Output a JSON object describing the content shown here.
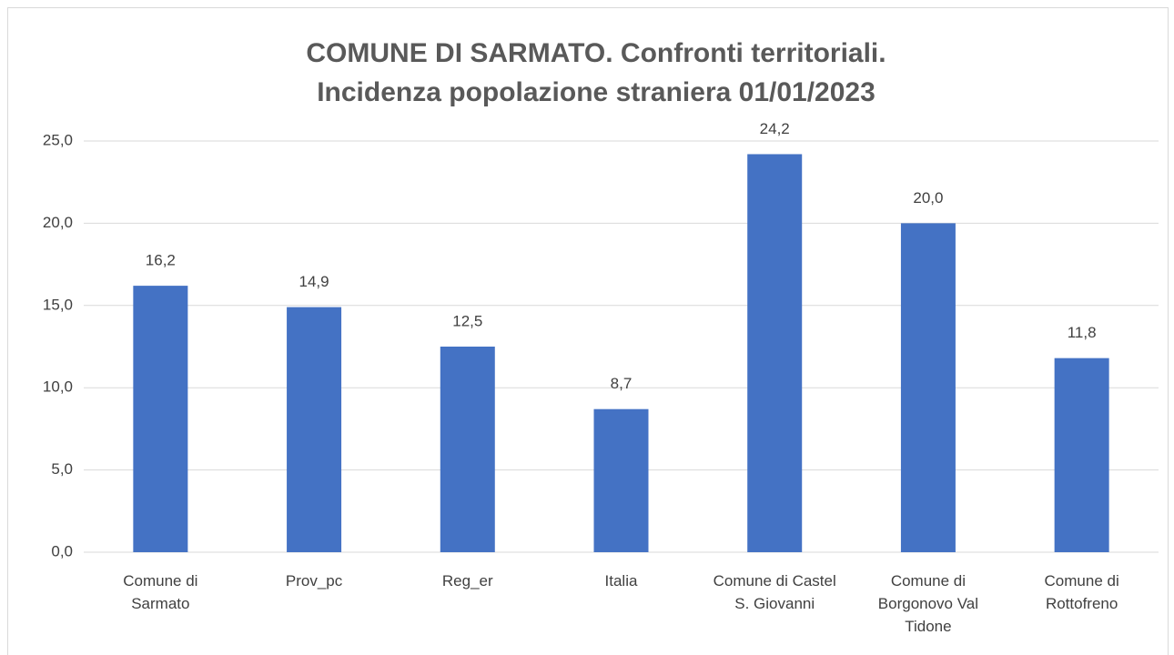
{
  "chart_data": {
    "type": "bar",
    "title": [
      "COMUNE DI SARMATO. Confronti territoriali.",
      "Incidenza popolazione straniera 01/01/2023"
    ],
    "categories": [
      "Comune di Sarmato",
      "Prov_pc",
      "Reg_er",
      "Italia",
      "Comune di Castel S. Giovanni",
      "Comune di Borgonovo Val Tidone",
      "Comune di Rottofreno"
    ],
    "values": [
      16.2,
      14.9,
      12.5,
      8.7,
      24.2,
      20.0,
      11.8
    ],
    "value_labels": [
      "16,2",
      "14,9",
      "12,5",
      "8,7",
      "24,2",
      "20,0",
      "11,8"
    ],
    "color": "#4472c4",
    "ylim": [
      0,
      25
    ],
    "yticks": [
      {
        "value": 0,
        "label": "0,0"
      },
      {
        "value": 5,
        "label": "5,0"
      },
      {
        "value": 10,
        "label": "10,0"
      },
      {
        "value": 15,
        "label": "15,0"
      },
      {
        "value": 20,
        "label": "20,0"
      },
      {
        "value": 25,
        "label": "25,0"
      }
    ],
    "grid": true
  }
}
